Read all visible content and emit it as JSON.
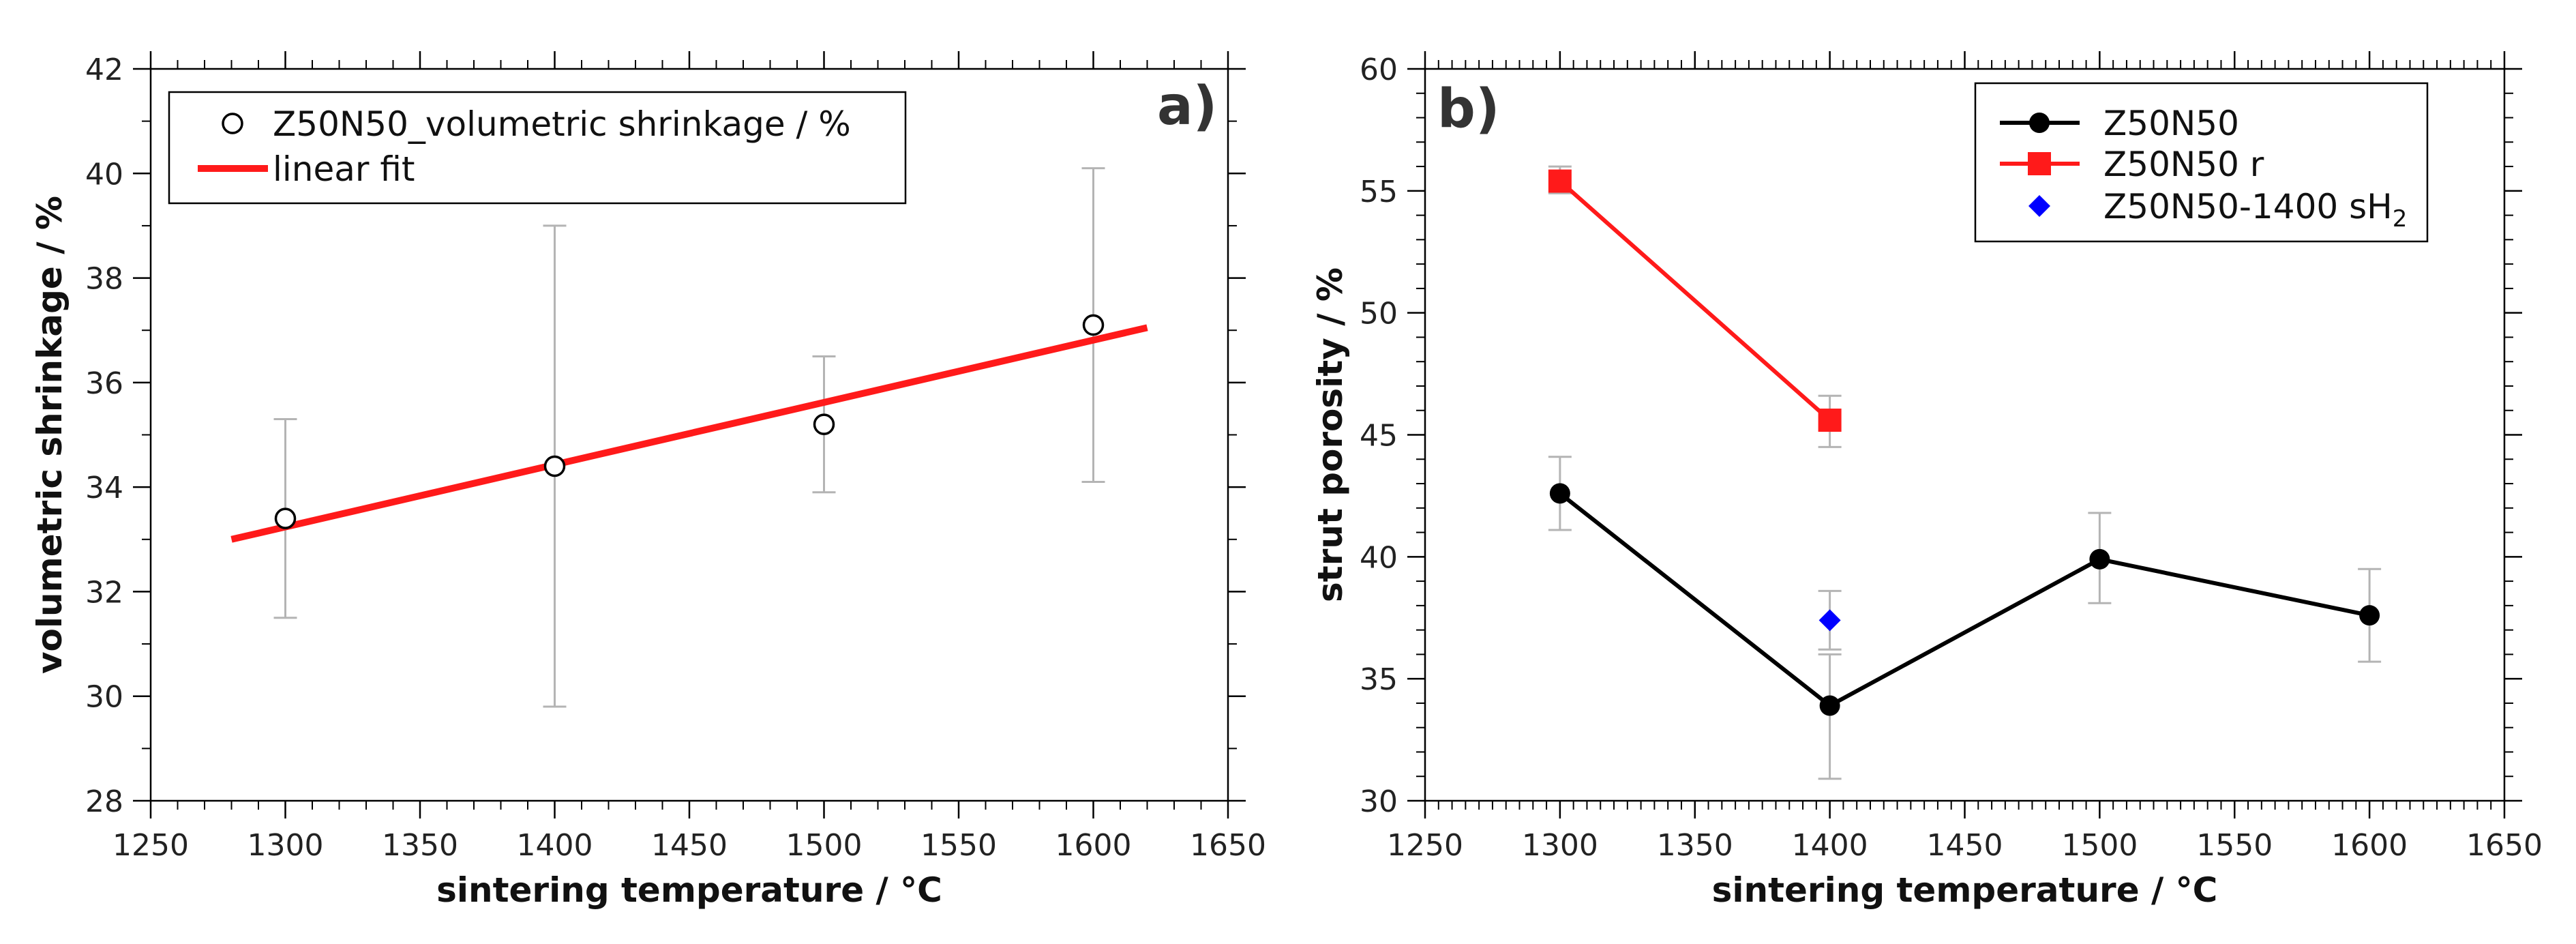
{
  "chart_data": [
    {
      "type": "scatter",
      "panel_label": "a)",
      "xlabel": "sintering temperature / °C",
      "ylabel": "volumetric shrinkage / %",
      "xlim": [
        1250,
        1650
      ],
      "ylim": [
        28,
        42
      ],
      "x_ticks": [
        1250,
        1300,
        1350,
        1400,
        1450,
        1500,
        1550,
        1600,
        1650
      ],
      "y_ticks": [
        28,
        30,
        32,
        34,
        36,
        38,
        40,
        42
      ],
      "series": [
        {
          "name": "Z50N50_volumetric shrinkage / %",
          "marker": "open-circle",
          "color": "#000000",
          "errorbar_color": "#b4b4b4",
          "points": [
            {
              "x": 1300,
              "y": 33.4,
              "err_low": 31.5,
              "err_high": 35.3
            },
            {
              "x": 1400,
              "y": 34.4,
              "err_low": 29.8,
              "err_high": 39.0
            },
            {
              "x": 1500,
              "y": 35.2,
              "err_low": 33.9,
              "err_high": 36.5
            },
            {
              "x": 1600,
              "y": 37.1,
              "err_low": 34.1,
              "err_high": 40.1
            }
          ]
        }
      ],
      "fit": {
        "name": "linear fit",
        "color": "#ff1a1a",
        "x": [
          1280,
          1620
        ],
        "y": [
          33.0,
          37.05
        ]
      },
      "legend": {
        "position": "top-left",
        "entries": [
          "Z50N50_volumetric shrinkage / %",
          "linear fit"
        ]
      }
    },
    {
      "type": "line",
      "panel_label": "b)",
      "xlabel": "sintering temperature / °C",
      "ylabel": "strut porosity / %",
      "xlim": [
        1250,
        1650
      ],
      "ylim": [
        30,
        60
      ],
      "x_ticks": [
        1250,
        1300,
        1350,
        1400,
        1450,
        1500,
        1550,
        1600,
        1650
      ],
      "y_ticks": [
        30,
        35,
        40,
        45,
        50,
        55,
        60
      ],
      "series": [
        {
          "name": "Z50N50",
          "marker": "circle",
          "color": "#000000",
          "errorbar_color": "#b4b4b4",
          "points": [
            {
              "x": 1300,
              "y": 42.6,
              "err_low": 41.1,
              "err_high": 44.1
            },
            {
              "x": 1400,
              "y": 33.9,
              "err_low": 30.9,
              "err_high": 36.0
            },
            {
              "x": 1500,
              "y": 39.9,
              "err_low": 38.1,
              "err_high": 41.8
            },
            {
              "x": 1600,
              "y": 37.6,
              "err_low": 35.7,
              "err_high": 39.5
            }
          ]
        },
        {
          "name": "Z50N50 r",
          "marker": "square",
          "color": "#ff1a1a",
          "errorbar_color": "#b4b4b4",
          "points": [
            {
              "x": 1300,
              "y": 55.4,
              "err_low": 54.9,
              "err_high": 56.0
            },
            {
              "x": 1400,
              "y": 45.6,
              "err_low": 44.5,
              "err_high": 46.6
            }
          ]
        },
        {
          "name": "Z50N50-1400 sH",
          "name_subscript": "2",
          "marker": "diamond",
          "color": "#0000ff",
          "errorbar_color": "#b4b4b4",
          "no_line": true,
          "points": [
            {
              "x": 1400,
              "y": 37.4,
              "err_low": 36.2,
              "err_high": 38.6
            }
          ]
        }
      ],
      "legend": {
        "position": "top-right",
        "entries": [
          "Z50N50",
          "Z50N50 r",
          "Z50N50-1400 sH2"
        ]
      }
    }
  ]
}
